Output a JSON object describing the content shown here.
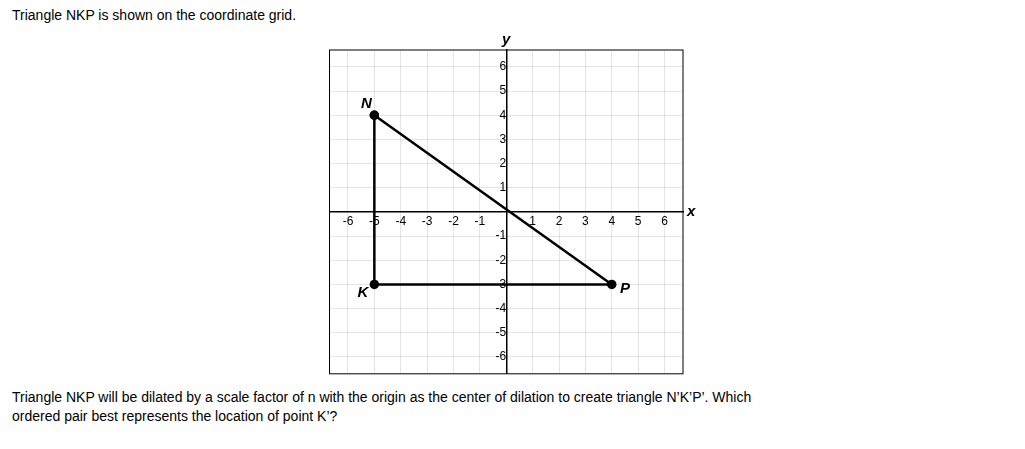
{
  "chart_data": {
    "type": "line",
    "title": "Triangle NKP is shown on the coordinate grid.",
    "subtitle": [
      "Triangle NKP will be dilated by a scale factor of n with the origin as the center of dilation to create triangle N’K’P’. Which",
      "ordered pair best represents the location of point K’?"
    ],
    "xlabel": "x",
    "ylabel": "y",
    "x": [
      -5,
      -5,
      4,
      -5
    ],
    "values": [
      4,
      -3,
      -3,
      4
    ],
    "color": "#000000",
    "marker": "circle",
    "annotations": [
      {
        "text": "N",
        "x": -5,
        "y": 4
      },
      {
        "text": "K",
        "x": -5,
        "y": -3
      },
      {
        "text": "P",
        "x": 4,
        "y": -3
      }
    ],
    "xlim": [
      -6.7,
      6.7
    ],
    "ylim": [
      -6.7,
      6.7
    ],
    "xticks": [
      -6,
      -5,
      -4,
      -3,
      -2,
      -1,
      1,
      2,
      3,
      4,
      5,
      6
    ],
    "yticks": [
      -6,
      -5,
      -4,
      -3,
      -2,
      -1,
      1,
      2,
      3,
      4,
      5,
      6
    ],
    "grid": true
  }
}
